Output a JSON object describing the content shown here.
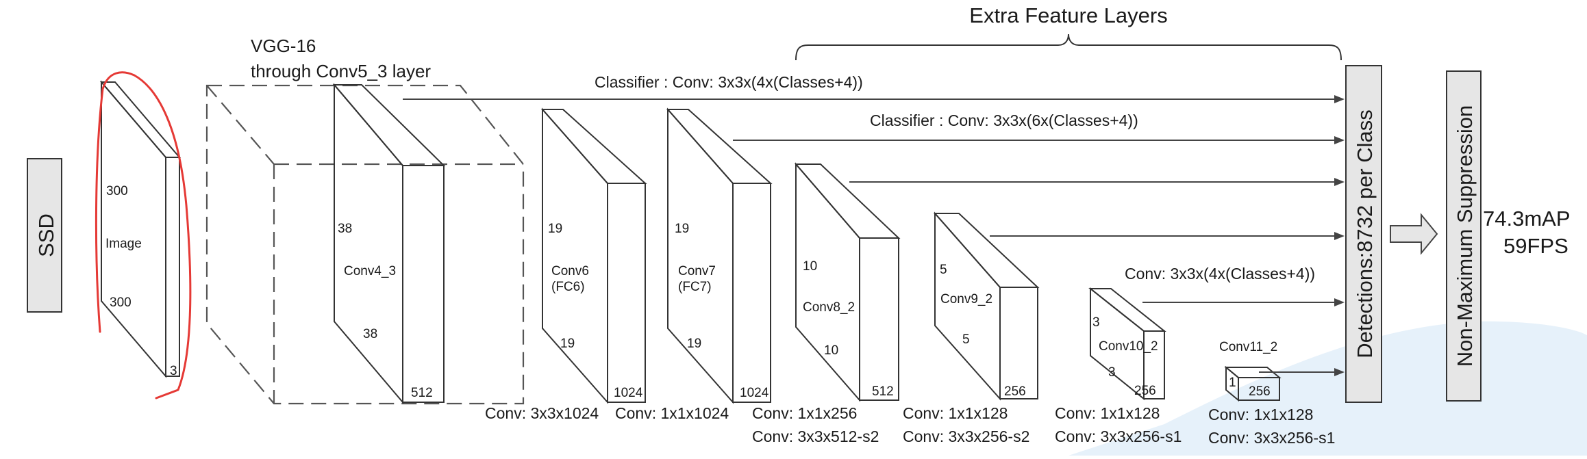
{
  "labels": {
    "ssd": "SSD",
    "image_h": "300",
    "image_w": "300",
    "image_name": "Image",
    "image_c": "3",
    "vgg_line1": "VGG-16",
    "vgg_line2": "through Conv5_3 layer",
    "extra": "Extra Feature Layers",
    "classifier1": "Classifier : Conv: 3x3x(4x(Classes+4))",
    "classifier2": "Classifier : Conv: 3x3x(6x(Classes+4))",
    "classifier3": "Conv: 3x3x(4x(Classes+4))",
    "detections": "Detections:8732  per Class",
    "nms": "Non-Maximum Suppression",
    "map": "74.3mAP",
    "fps": "59FPS"
  },
  "layers": [
    {
      "name": "Conv4_3",
      "h": "38",
      "w": "38",
      "c": "512"
    },
    {
      "name": "Conv6",
      "name2": "(FC6)",
      "h": "19",
      "w": "19",
      "c": "1024"
    },
    {
      "name": "Conv7",
      "name2": "(FC7)",
      "h": "19",
      "w": "19",
      "c": "1024"
    },
    {
      "name": "Conv8_2",
      "h": "10",
      "w": "10",
      "c": "512"
    },
    {
      "name": "Conv9_2",
      "h": "5",
      "w": "5",
      "c": "256"
    },
    {
      "name": "Conv10_2",
      "h": "3",
      "w": "3",
      "c": "256"
    },
    {
      "name": "Conv11_2",
      "h": "1",
      "c": "256"
    }
  ],
  "convs": {
    "c6": "Conv: 3x3x1024",
    "c7": "Conv: 1x1x1024",
    "c8a": "Conv: 1x1x256",
    "c8b": "Conv:  3x3x512-s2",
    "c9a": "Conv: 1x1x128",
    "c9b": "Conv: 3x3x256-s2",
    "c10a": "Conv: 1x1x128",
    "c10b": "Conv: 3x3x256-s1",
    "c11a": "Conv: 1x1x128",
    "c11b": "Conv: 3x3x256-s1"
  },
  "colors": {
    "annotation": "#e53935",
    "box_fill": "#e6e6e6",
    "watermark": "#d6e8f7"
  }
}
